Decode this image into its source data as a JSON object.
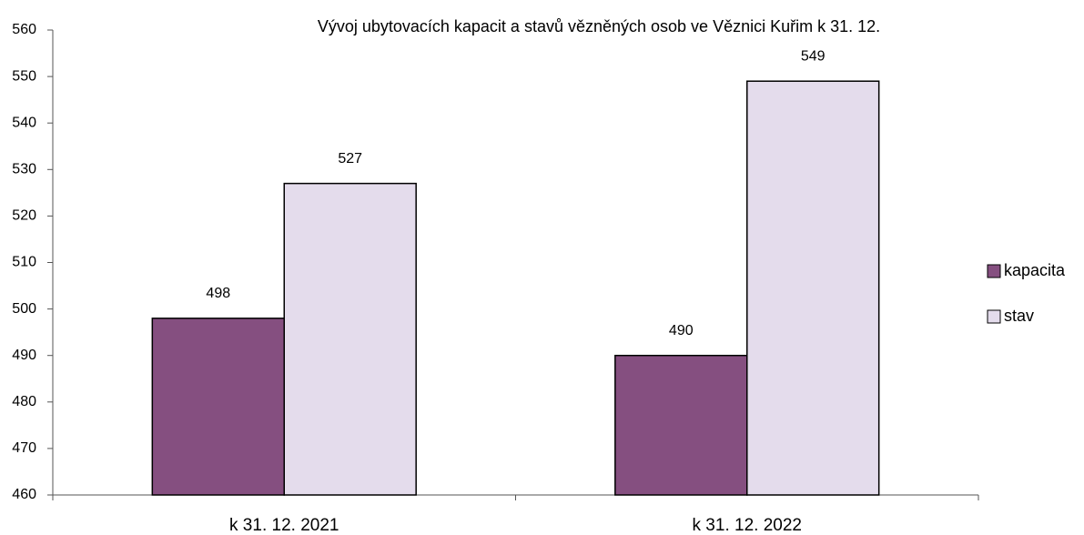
{
  "chart_data": {
    "type": "bar",
    "title": "Vývoj ubytovacích kapacit a stavů vězněných osob ve Věznici Kuřim k 31. 12.",
    "categories": [
      "k 31. 12. 2021",
      "k 31. 12. 2022"
    ],
    "series": [
      {
        "name": "kapacita",
        "color": "#854f80",
        "values": [
          498,
          490
        ]
      },
      {
        "name": "stav",
        "color": "#e4dcec",
        "values": [
          527,
          549
        ]
      }
    ],
    "ylim": [
      460,
      560
    ],
    "yticks": [
      460,
      470,
      480,
      490,
      500,
      510,
      520,
      530,
      540,
      550,
      560
    ],
    "legend": "right"
  }
}
